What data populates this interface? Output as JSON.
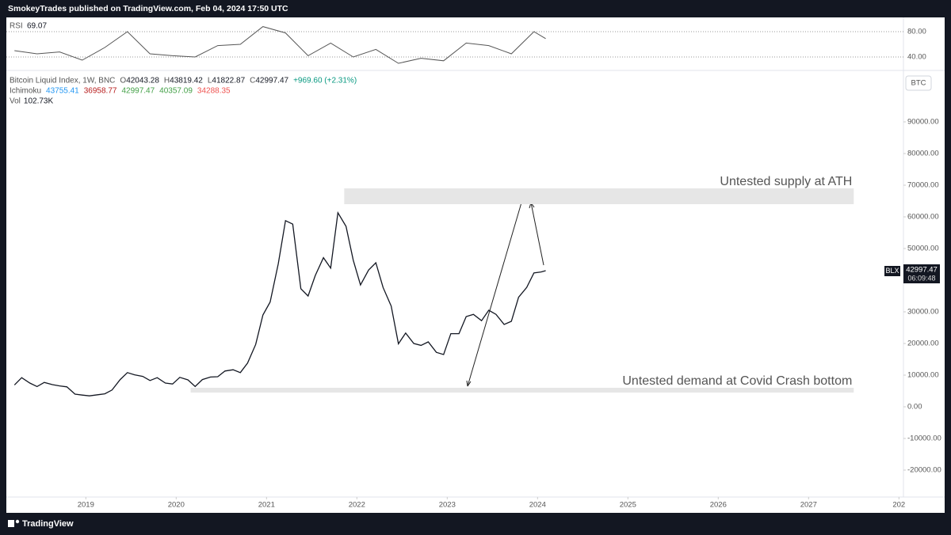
{
  "header": {
    "publisher": "SmokeyTrades published on TradingView.com, Feb 04, 2024 17:50 UTC"
  },
  "footer": {
    "brand": "TradingView"
  },
  "legend": {
    "title": "Bitcoin Liquid Index, 1W, BNC",
    "ohlc": [
      {
        "label": "O",
        "value": "42043.28"
      },
      {
        "label": "H",
        "value": "43819.42"
      },
      {
        "label": "L",
        "value": "41822.87"
      },
      {
        "label": "C",
        "value": "42997.47"
      }
    ],
    "change": "+969.60 (+2.31%)",
    "ichimoku": {
      "label": "Ichimoku",
      "values": [
        {
          "text": "43755.41",
          "color": "#2196f3"
        },
        {
          "text": "36958.77",
          "color": "#b71c1c"
        },
        {
          "text": "42997.47",
          "color": "#43a047"
        },
        {
          "text": "40357.09",
          "color": "#43a047"
        },
        {
          "text": "34288.35",
          "color": "#ef5350"
        }
      ]
    },
    "volume": {
      "label": "Vol",
      "value": "102.73K"
    },
    "symbol_button": "BTC"
  },
  "price_badge": {
    "symbol": "BLX",
    "price": "42997.47",
    "countdown": "06:09:48"
  },
  "chart_data": {
    "type": "line",
    "x": [
      2018.21,
      2018.29,
      2018.38,
      2018.46,
      2018.54,
      2018.63,
      2018.71,
      2018.79,
      2018.88,
      2018.96,
      2019.04,
      2019.13,
      2019.21,
      2019.29,
      2019.38,
      2019.46,
      2019.54,
      2019.63,
      2019.71,
      2019.79,
      2019.88,
      2019.96,
      2020.04,
      2020.13,
      2020.21,
      2020.29,
      2020.38,
      2020.46,
      2020.54,
      2020.63,
      2020.71,
      2020.79,
      2020.88,
      2020.96,
      2021.04,
      2021.13,
      2021.21,
      2021.29,
      2021.38,
      2021.46,
      2021.54,
      2021.63,
      2021.71,
      2021.79,
      2021.88,
      2021.96,
      2022.04,
      2022.13,
      2022.21,
      2022.29,
      2022.38,
      2022.46,
      2022.54,
      2022.63,
      2022.71,
      2022.79,
      2022.88,
      2022.96,
      2023.04,
      2023.13,
      2023.21,
      2023.29,
      2023.38,
      2023.46,
      2023.54,
      2023.63,
      2023.71,
      2023.79,
      2023.88,
      2023.96,
      2024.04,
      2024.09
    ],
    "series": [
      {
        "name": "Bitcoin Liquid Index",
        "color": "#131722",
        "values": [
          6900,
          9200,
          7500,
          6400,
          7700,
          7000,
          6600,
          6300,
          4000,
          3700,
          3450,
          3800,
          4100,
          5300,
          8600,
          10800,
          10100,
          9600,
          8300,
          9200,
          7500,
          7200,
          9300,
          8500,
          6400,
          8600,
          9400,
          9500,
          11300,
          11700,
          10800,
          13800,
          19700,
          29000,
          33100,
          45200,
          58800,
          57700,
          37300,
          35000,
          41500,
          47100,
          43800,
          61300,
          57000,
          46300,
          38500,
          43200,
          45500,
          37700,
          31800,
          19900,
          23300,
          20000,
          19400,
          20500,
          17200,
          16500,
          23100,
          23100,
          28500,
          29200,
          27200,
          30500,
          29200,
          26000,
          27000,
          34600,
          37700,
          42300,
          42600,
          43000
        ]
      }
    ],
    "xlim": [
      2018.12,
      2028.05
    ],
    "xticks": [
      2019,
      2020,
      2021,
      2022,
      2023,
      2024,
      2025,
      2026,
      2027,
      {
        "value": 2028,
        "label": "202"
      }
    ],
    "ylim": [
      106000,
      -28500
    ],
    "yticks": [
      {
        "value": 90000,
        "label": "90000.00"
      },
      {
        "value": 80000,
        "label": "80000.00"
      },
      {
        "value": 70000,
        "label": "70000.00"
      },
      {
        "value": 60000,
        "label": "60000.00"
      },
      {
        "value": 50000,
        "label": "50000.00"
      },
      {
        "value": 40000,
        "label": "40000.00"
      },
      {
        "value": 30000,
        "label": "30000.00"
      },
      {
        "value": 20000,
        "label": "20000.00"
      },
      {
        "value": 10000,
        "label": "10000.00"
      },
      {
        "value": 0,
        "label": "0.00"
      },
      {
        "value": -10000,
        "label": "-10000.00"
      },
      {
        "value": -20000,
        "label": "-20000.00"
      }
    ],
    "zones": [
      {
        "label": "Untested supply at ATH",
        "low": 64000,
        "high": 69000,
        "x_start": 2021.86,
        "x_end": 2027.5,
        "color": "#e6e6e6"
      },
      {
        "label": "Untested demand at Covid Crash bottom",
        "low": 4500,
        "high": 6000,
        "x_start": 2020.16,
        "x_end": 2027.5,
        "color": "#e6e6e6"
      }
    ],
    "rsi": {
      "label": "RSI",
      "current": "69.07",
      "color": "#555555",
      "x": [
        2018.21,
        2018.46,
        2018.71,
        2018.96,
        2019.21,
        2019.46,
        2019.71,
        2019.96,
        2020.21,
        2020.46,
        2020.71,
        2020.96,
        2021.21,
        2021.46,
        2021.71,
        2021.96,
        2022.21,
        2022.46,
        2022.71,
        2022.96,
        2023.21,
        2023.46,
        2023.71,
        2023.96,
        2024.09
      ],
      "values": [
        50,
        45,
        48,
        35,
        55,
        80,
        45,
        42,
        40,
        58,
        60,
        88,
        78,
        42,
        62,
        40,
        52,
        30,
        38,
        34,
        62,
        58,
        45,
        80,
        69
      ],
      "ylim": [
        102.5,
        20
      ],
      "yticks": [
        {
          "value": 80,
          "label": "80.00"
        },
        {
          "value": 40,
          "label": "40.00"
        }
      ]
    }
  }
}
